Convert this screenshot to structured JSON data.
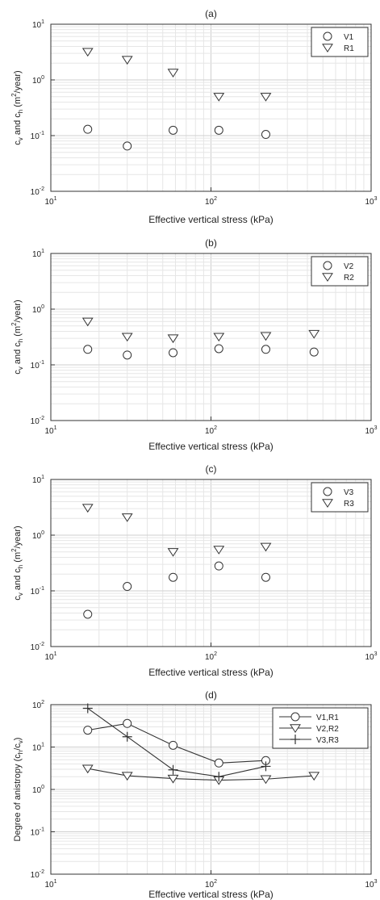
{
  "chart_data": [
    {
      "type": "scatter",
      "title": "(a)",
      "xlabel": "Effective vertical stress (kPa)",
      "ylabel": "c_v and c_h (m^2/year)",
      "xscale": "log",
      "yscale": "log",
      "xlim": [
        10,
        1000
      ],
      "ylim": [
        0.01,
        10
      ],
      "grid": true,
      "legend_position": "top-right",
      "series": [
        {
          "name": "V1",
          "marker": "circle",
          "line": false,
          "x": [
            17,
            30,
            58,
            112,
            220
          ],
          "y": [
            0.13,
            0.065,
            0.125,
            0.125,
            0.105
          ]
        },
        {
          "name": "R1",
          "marker": "triangle-down",
          "line": false,
          "x": [
            17,
            30,
            58,
            112,
            220
          ],
          "y": [
            3.2,
            2.3,
            1.35,
            0.5,
            0.5
          ]
        }
      ]
    },
    {
      "type": "scatter",
      "title": "(b)",
      "xlabel": "Effective vertical stress (kPa)",
      "ylabel": "c_v and c_h (m^2/year)",
      "xscale": "log",
      "yscale": "log",
      "xlim": [
        10,
        1000
      ],
      "ylim": [
        0.01,
        10
      ],
      "grid": true,
      "legend_position": "top-right",
      "series": [
        {
          "name": "V2",
          "marker": "circle",
          "line": false,
          "x": [
            17,
            30,
            58,
            112,
            220,
            440
          ],
          "y": [
            0.19,
            0.15,
            0.165,
            0.195,
            0.19,
            0.17
          ]
        },
        {
          "name": "R2",
          "marker": "triangle-down",
          "line": false,
          "x": [
            17,
            30,
            58,
            112,
            220,
            440
          ],
          "y": [
            0.6,
            0.32,
            0.3,
            0.32,
            0.33,
            0.36
          ]
        }
      ]
    },
    {
      "type": "scatter",
      "title": "(c)",
      "xlabel": "Effective vertical stress (kPa)",
      "ylabel": "c_v and c_h (m^2/year)",
      "xscale": "log",
      "yscale": "log",
      "xlim": [
        10,
        1000
      ],
      "ylim": [
        0.01,
        10
      ],
      "grid": true,
      "legend_position": "top-right",
      "series": [
        {
          "name": "V3",
          "marker": "circle",
          "line": false,
          "x": [
            17,
            30,
            58,
            112,
            220
          ],
          "y": [
            0.038,
            0.12,
            0.175,
            0.28,
            0.175
          ]
        },
        {
          "name": "R3",
          "marker": "triangle-down",
          "line": false,
          "x": [
            17,
            30,
            58,
            112,
            220
          ],
          "y": [
            3.1,
            2.1,
            0.5,
            0.55,
            0.62
          ]
        }
      ]
    },
    {
      "type": "line",
      "title": "(d)",
      "xlabel": "Effective vertical stress (kPa)",
      "ylabel": "Degree of anistropy (c_h/c_v)",
      "xscale": "log",
      "yscale": "log",
      "xlim": [
        10,
        1000
      ],
      "ylim": [
        0.01,
        100
      ],
      "grid": true,
      "legend_position": "top-right",
      "series": [
        {
          "name": "V1,R1",
          "marker": "circle",
          "line": true,
          "x": [
            17,
            30,
            58,
            112,
            220
          ],
          "y": [
            25,
            36,
            11,
            4.2,
            4.8
          ]
        },
        {
          "name": "V2,R2",
          "marker": "triangle-down",
          "line": true,
          "x": [
            17,
            30,
            58,
            112,
            220,
            440
          ],
          "y": [
            3.1,
            2.1,
            1.8,
            1.65,
            1.75,
            2.1
          ]
        },
        {
          "name": "V3,R3",
          "marker": "plus",
          "line": true,
          "x": [
            17,
            30,
            58,
            112,
            220
          ],
          "y": [
            82,
            17.5,
            2.9,
            2.0,
            3.5
          ]
        }
      ]
    }
  ]
}
